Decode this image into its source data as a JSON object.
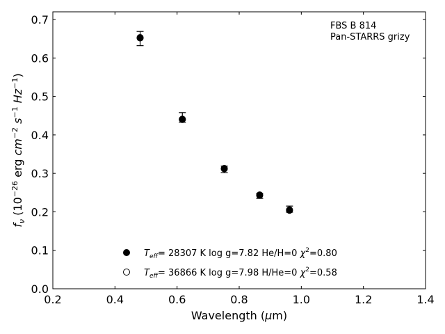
{
  "chart_data": {
    "type": "scatter",
    "xlabel": "Wavelength (μm)",
    "ylabel": "fν (10⁻²⁶ erg cm⁻² s⁻¹ Hz⁻¹)",
    "xlim": [
      0.2,
      1.4
    ],
    "ylim": [
      0.0,
      0.72
    ],
    "x_ticks": [
      "0.2",
      "0.4",
      "0.6",
      "0.8",
      "1.0",
      "1.2",
      "1.4"
    ],
    "y_ticks": [
      "0.0",
      "0.1",
      "0.2",
      "0.3",
      "0.4",
      "0.5",
      "0.6",
      "0.7"
    ],
    "grid": false,
    "annotation": [
      "FBS B 814",
      "Pan-STARRS grizy"
    ],
    "series": [
      {
        "name": "Teff= 28307 K  log g=7.82  He/H=0  χ²=0.80",
        "marker": "filled",
        "x": [
          0.481,
          0.617,
          0.752,
          0.866,
          0.962
        ],
        "y": [
          0.652,
          0.44,
          0.313,
          0.244,
          0.205
        ]
      },
      {
        "name": "Teff= 36866 K  log g=7.98  H/He=0  χ²=0.58",
        "marker": "open",
        "x": [
          0.481,
          0.617,
          0.752,
          0.866,
          0.962
        ],
        "y": [
          0.653,
          0.441,
          0.312,
          0.243,
          0.204
        ]
      }
    ],
    "observed": {
      "x": [
        0.481,
        0.617,
        0.752,
        0.866,
        0.962
      ],
      "y": [
        0.651,
        0.444,
        0.31,
        0.242,
        0.206
      ],
      "yerr_low": [
        0.019,
        0.011,
        0.008,
        0.007,
        0.007
      ],
      "yerr_high": [
        0.018,
        0.014,
        0.009,
        0.006,
        0.009
      ]
    },
    "legend": {
      "placement": "lower-center",
      "entries": [
        {
          "marker": "filled",
          "teff": "= 28307 K  log g=7.82  He/H=0  ",
          "chi": "=0.80"
        },
        {
          "marker": "open",
          "teff": "= 36866 K  log g=7.98  H/He=0  ",
          "chi": "=0.58"
        }
      ]
    }
  }
}
